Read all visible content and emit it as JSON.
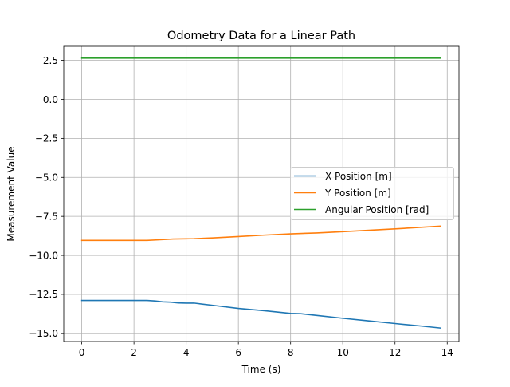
{
  "chart_data": {
    "type": "line",
    "title": "Odometry Data for a Linear Path",
    "xlabel": "Time (s)",
    "ylabel": "Measurement Value",
    "xlim": [
      -0.69,
      14.45
    ],
    "ylim": [
      -15.52,
      3.4
    ],
    "xticks": [
      0,
      2,
      4,
      6,
      8,
      10,
      12,
      14
    ],
    "xtick_labels": [
      "0",
      "2",
      "4",
      "6",
      "8",
      "10",
      "12",
      "14"
    ],
    "yticks": [
      2.5,
      0.0,
      -2.5,
      -5.0,
      -7.5,
      -10.0,
      -12.5,
      -15.0
    ],
    "ytick_labels": [
      "2.5",
      "0.0",
      "−2.5",
      "−5.0",
      "−7.5",
      "−10.0",
      "−12.5",
      "−15.0"
    ],
    "grid": true,
    "legend_position": "center-right",
    "series": [
      {
        "name": "X Position [m]",
        "color": "#1f77b4",
        "x": [
          0,
          0.5,
          1.0,
          1.5,
          2.0,
          2.5,
          2.8,
          3.1,
          3.4,
          3.7,
          4.0,
          4.3,
          5.0,
          6.0,
          7.0,
          8.0,
          8.4,
          9.0,
          10.0,
          11.0,
          12.0,
          13.0,
          13.75
        ],
        "y": [
          -12.89,
          -12.89,
          -12.89,
          -12.89,
          -12.89,
          -12.89,
          -12.92,
          -12.98,
          -13.0,
          -13.05,
          -13.06,
          -13.06,
          -13.2,
          -13.4,
          -13.55,
          -13.72,
          -13.74,
          -13.85,
          -14.03,
          -14.2,
          -14.37,
          -14.53,
          -14.66
        ]
      },
      {
        "name": "Y Position [m]",
        "color": "#ff7f0e",
        "x": [
          0,
          0.5,
          1.0,
          1.5,
          2.0,
          2.5,
          3.0,
          3.5,
          4.0,
          4.3,
          5.0,
          6.0,
          7.0,
          8.0,
          9.0,
          10.0,
          11.0,
          12.0,
          13.0,
          13.75
        ],
        "y": [
          -9.04,
          -9.04,
          -9.04,
          -9.04,
          -9.04,
          -9.04,
          -9.0,
          -8.95,
          -8.94,
          -8.93,
          -8.88,
          -8.79,
          -8.7,
          -8.62,
          -8.56,
          -8.48,
          -8.39,
          -8.3,
          -8.2,
          -8.12
        ]
      },
      {
        "name": "Angular Position [rad]",
        "color": "#2ca02c",
        "x": [
          0,
          2,
          4,
          6,
          8,
          10,
          12,
          13.75
        ],
        "y": [
          2.64,
          2.64,
          2.64,
          2.64,
          2.64,
          2.64,
          2.64,
          2.64
        ]
      }
    ]
  }
}
